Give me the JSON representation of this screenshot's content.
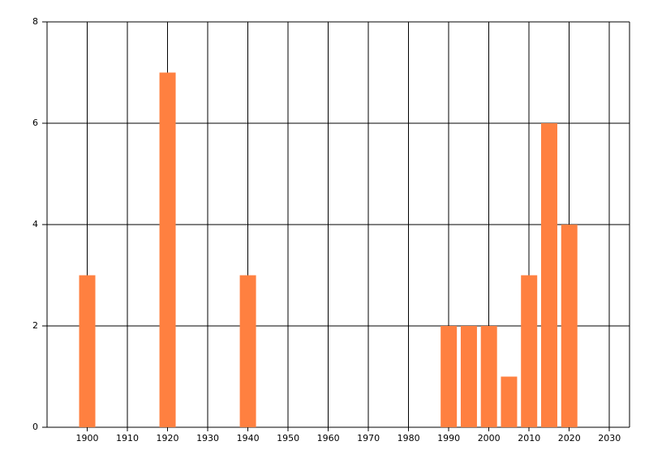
{
  "chart_data": {
    "type": "bar",
    "x": [
      1900,
      1920,
      1940,
      1990,
      1995,
      2000,
      2005,
      2010,
      2015,
      2020
    ],
    "values": [
      3,
      7,
      3,
      2,
      2,
      2,
      1,
      3,
      6,
      4
    ],
    "color": "#ff8040",
    "xlim": [
      1890,
      2035
    ],
    "xticks": [
      1900,
      1910,
      1920,
      1930,
      1940,
      1950,
      1960,
      1970,
      1980,
      1990,
      2000,
      2010,
      2020,
      2030
    ],
    "ylim": [
      0,
      8
    ],
    "yticks": [
      0,
      2,
      4,
      6,
      8
    ],
    "grid": true
  }
}
